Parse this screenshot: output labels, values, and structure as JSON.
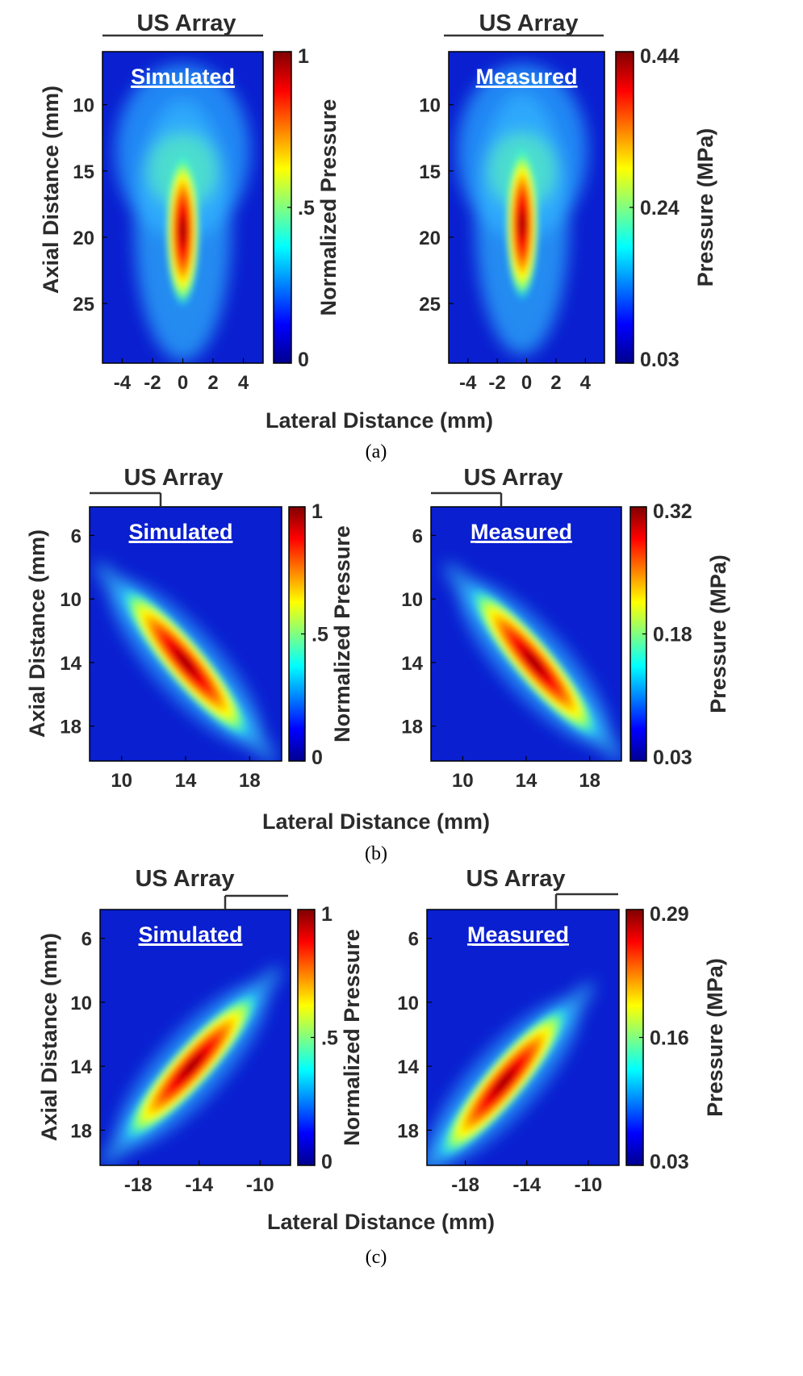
{
  "colormap": [
    "#00008f",
    "#0000ff",
    "#0080ff",
    "#00ffff",
    "#80ff80",
    "#ffff00",
    "#ff8000",
    "#ff0000",
    "#800000"
  ],
  "chart_data": [
    {
      "panel": "a",
      "caption": "(a)",
      "position": "left",
      "type": "heatmap",
      "array_label": "US Array",
      "tag": "Simulated",
      "ylabel": "Axial Distance (mm)",
      "xlabel": "Lateral Distance (mm)",
      "colorbar_label": "Normalized Pressure",
      "xlim": [
        -5.3,
        5.3
      ],
      "ylim": [
        6,
        29.5
      ],
      "xticks": [
        -4,
        -2,
        0,
        2,
        4
      ],
      "yticks": [
        10,
        15,
        20,
        25
      ],
      "clim": [
        0,
        1
      ],
      "cbar_ticks": [
        "0",
        ".5",
        "1"
      ],
      "focus": {
        "x": 0,
        "y": 19.5,
        "angle_deg": 0
      }
    },
    {
      "panel": "a",
      "position": "right",
      "type": "heatmap",
      "array_label": "US Array",
      "tag": "Measured",
      "colorbar_label": "Pressure (MPa)",
      "xlim": [
        -5.3,
        5.3
      ],
      "ylim": [
        6,
        29.5
      ],
      "xticks": [
        -4,
        -2,
        0,
        2,
        4
      ],
      "yticks": [
        10,
        15,
        20,
        25
      ],
      "clim": [
        0.03,
        0.44
      ],
      "cbar_ticks": [
        "0.03",
        "0.24",
        "0.44"
      ],
      "focus": {
        "x": -0.3,
        "y": 19,
        "angle_deg": 0
      }
    },
    {
      "panel": "b",
      "caption": "(b)",
      "position": "left",
      "type": "heatmap",
      "array_label": "US Array",
      "tag": "Simulated",
      "ylabel": "Axial Distance (mm)",
      "xlabel": "Lateral Distance (mm)",
      "colorbar_label": "Normalized Pressure",
      "xlim": [
        8,
        20
      ],
      "ylim": [
        4.2,
        20.2
      ],
      "xticks": [
        10,
        14,
        18
      ],
      "yticks": [
        6,
        10,
        14,
        18
      ],
      "clim": [
        0,
        1
      ],
      "cbar_ticks": [
        "0",
        ".5",
        "1"
      ],
      "focus": {
        "x": 14,
        "y": 14,
        "angle_deg": -40
      }
    },
    {
      "panel": "b",
      "position": "right",
      "type": "heatmap",
      "array_label": "US Array",
      "tag": "Measured",
      "colorbar_label": "Pressure (MPa)",
      "xlim": [
        8,
        20
      ],
      "ylim": [
        4.2,
        20.2
      ],
      "xticks": [
        10,
        14,
        18
      ],
      "yticks": [
        6,
        10,
        14,
        18
      ],
      "clim": [
        0.03,
        0.32
      ],
      "cbar_ticks": [
        "0.03",
        "0.18",
        "0.32"
      ],
      "focus": {
        "x": 14.5,
        "y": 14,
        "angle_deg": -40
      }
    },
    {
      "panel": "c",
      "caption": "(c)",
      "position": "left",
      "type": "heatmap",
      "array_label": "US Array",
      "tag": "Simulated",
      "ylabel": "Axial Distance (mm)",
      "xlabel": "Lateral Distance (mm)",
      "colorbar_label": "Normalized Pressure",
      "xlim": [
        -20.5,
        -8
      ],
      "ylim": [
        4.2,
        20.2
      ],
      "xticks": [
        -18,
        -14,
        -10
      ],
      "yticks": [
        6,
        10,
        14,
        18
      ],
      "clim": [
        0,
        1
      ],
      "cbar_ticks": [
        "0",
        ".5",
        "1"
      ],
      "focus": {
        "x": -14.5,
        "y": 14,
        "angle_deg": 42
      }
    },
    {
      "panel": "c",
      "position": "right",
      "type": "heatmap",
      "array_label": "US Array",
      "tag": "Measured",
      "colorbar_label": "Pressure (MPa)",
      "xlim": [
        -20.5,
        -8
      ],
      "ylim": [
        4.2,
        20.2
      ],
      "xticks": [
        -18,
        -14,
        -10
      ],
      "yticks": [
        6,
        10,
        14,
        18
      ],
      "clim": [
        0.03,
        0.29
      ],
      "cbar_ticks": [
        "0.03",
        "0.16",
        "0.29"
      ],
      "focus": {
        "x": -15.5,
        "y": 15,
        "angle_deg": 40
      }
    }
  ]
}
